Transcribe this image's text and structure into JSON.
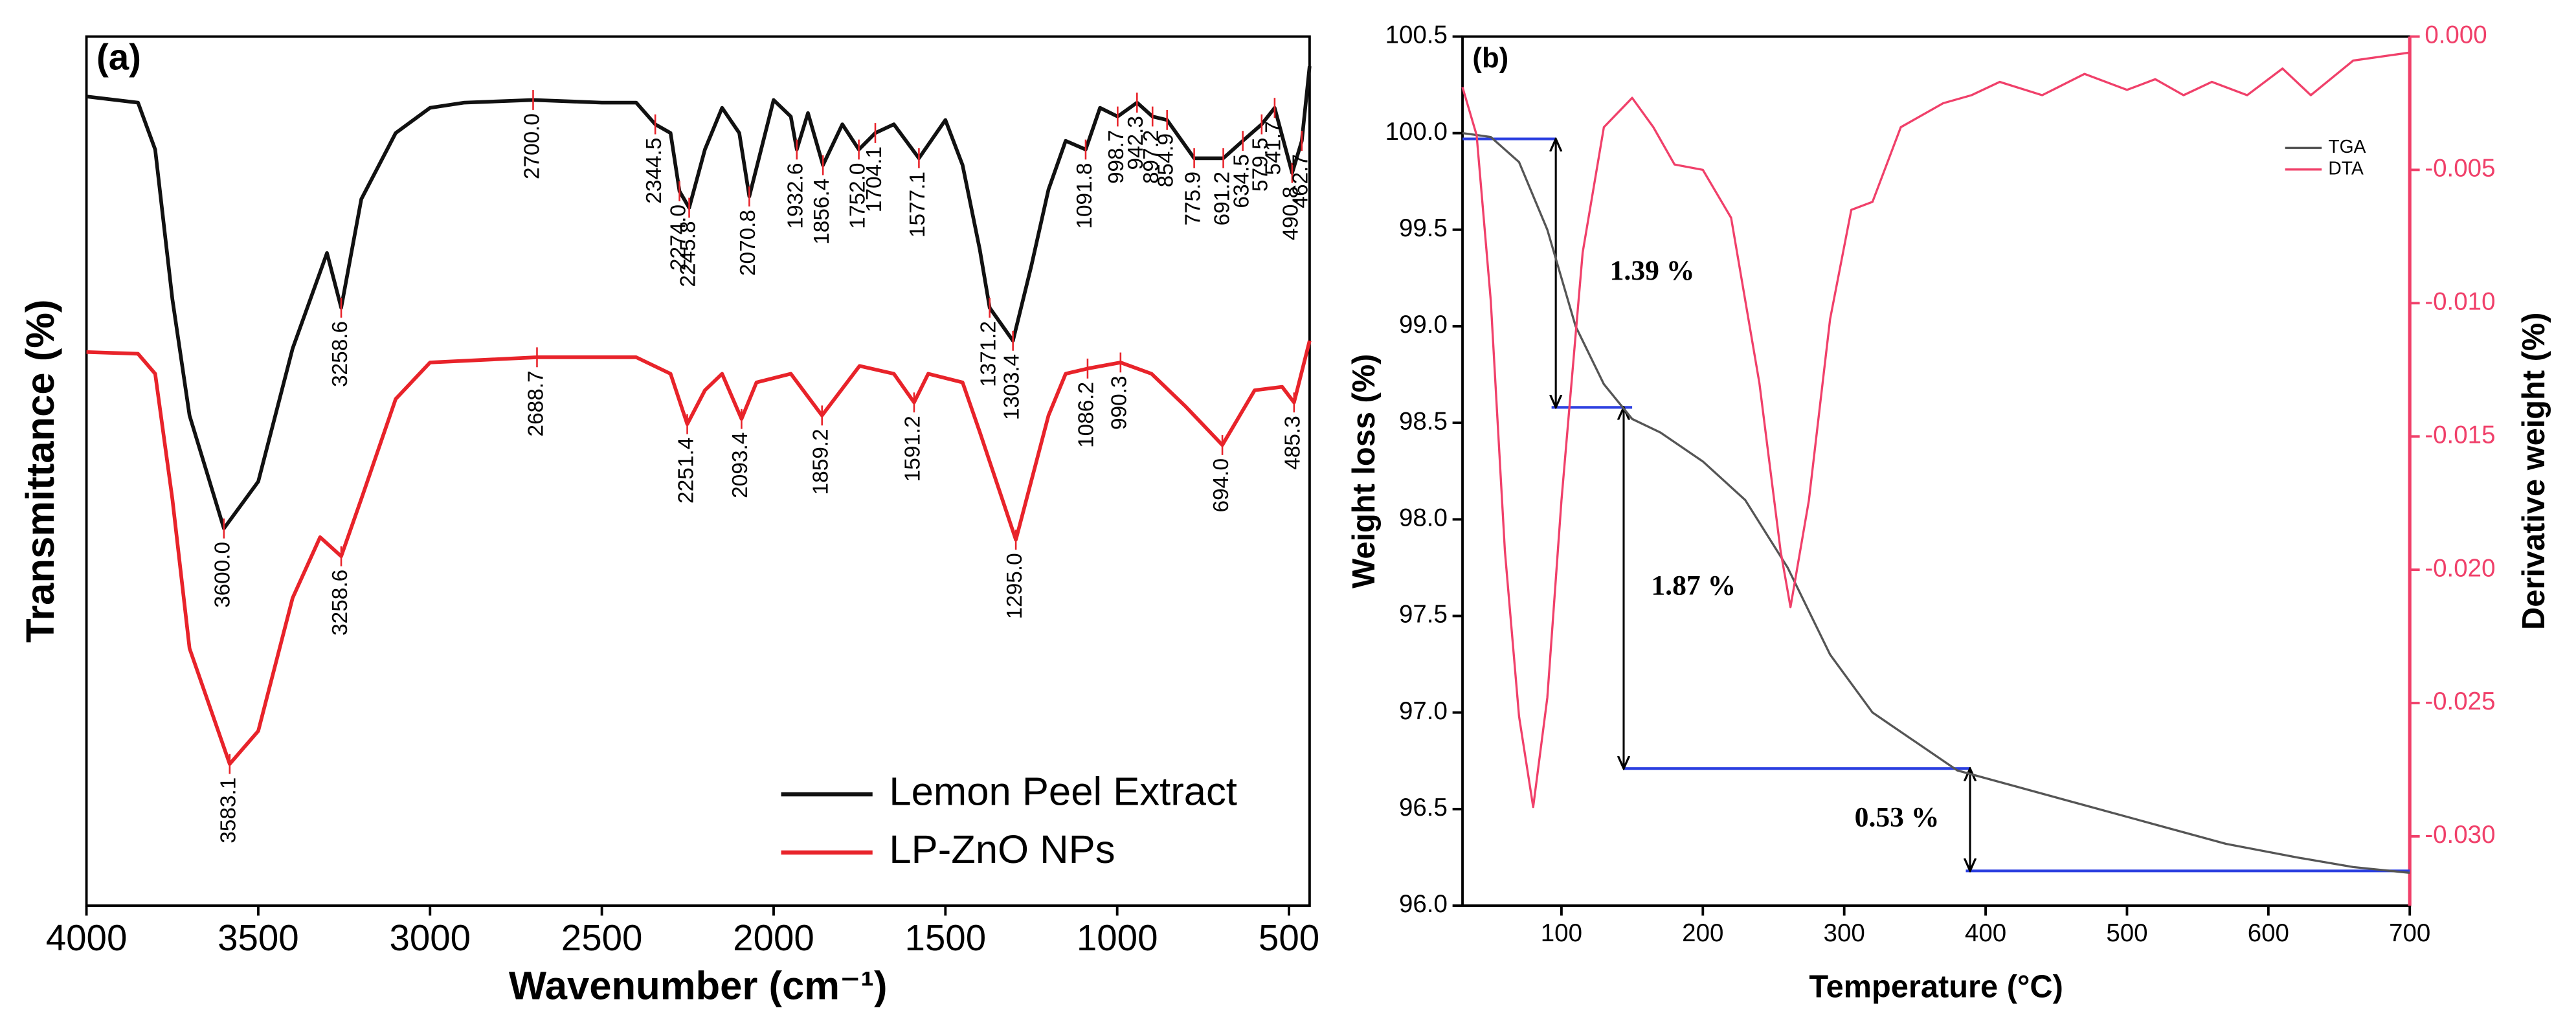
{
  "chart_data": [
    {
      "type": "line",
      "panel_label": "(a)",
      "x_label": "Wavenumber (cm⁻¹)",
      "y_label": "Transmittance (%)",
      "xlim": [
        4000,
        440
      ],
      "xticks": [
        4000,
        3500,
        3000,
        2500,
        2000,
        1500,
        1000,
        500
      ],
      "ylim": [
        0,
        100
      ],
      "legend": "lower right",
      "series": [
        {
          "name": "Lemon Peel Extract",
          "color": "#111111",
          "x": [
            4000,
            3850,
            3800,
            3750,
            3700,
            3600,
            3500,
            3400,
            3300,
            3258.6,
            3200,
            3100,
            3000,
            2900,
            2700,
            2500,
            2400,
            2344.5,
            2300,
            2274,
            2245.8,
            2200,
            2150,
            2100,
            2070.8,
            2000,
            1950,
            1932.6,
            1900,
            1856.4,
            1800,
            1752,
            1704.1,
            1650,
            1577.1,
            1500,
            1450,
            1400,
            1371.2,
            1303.4,
            1250,
            1200,
            1150,
            1091.8,
            1050,
            998.7,
            942.3,
            897.2,
            854.9,
            775.9,
            691.2,
            634.5,
            579.5,
            541.7,
            490.8,
            462.7,
            440
          ],
          "values": [
            93.1,
            92.4,
            87.0,
            69.8,
            56.4,
            43.4,
            48.8,
            64.1,
            75.1,
            68.8,
            81.3,
            88.9,
            91.8,
            92.4,
            92.7,
            92.4,
            92.4,
            89.9,
            88.9,
            82.2,
            80.3,
            87.0,
            91.8,
            88.9,
            81.6,
            92.7,
            90.8,
            87.0,
            91.2,
            85.2,
            89.9,
            87.0,
            88.9,
            89.9,
            86.0,
            90.4,
            85.2,
            75.5,
            68.8,
            65.0,
            73.6,
            82.4,
            88.0,
            87.0,
            91.8,
            90.8,
            92.4,
            90.8,
            90.4,
            86.0,
            86.0,
            88.0,
            89.9,
            91.8,
            84.3,
            88.0,
            96.6
          ],
          "peaks": [
            3600,
            3258.6,
            2700,
            2344.5,
            2274,
            2245.8,
            2070.8,
            1932.6,
            1856.4,
            1752,
            1704.1,
            1577.1,
            1371.2,
            1303.4,
            1091.8,
            998.7,
            942.3,
            897.2,
            854.9,
            775.9,
            691.2,
            634.5,
            579.5,
            541.7,
            490.8,
            462.7
          ],
          "peak_labels": [
            "3600.0",
            "3258.6",
            "2700.0",
            "2344.5",
            "2274.0",
            "2245.8",
            "2070.8",
            "1932.6",
            "1856.4",
            "1752.0",
            "1704.1",
            "1577.1",
            "1371.2",
            "1303.4",
            "1091.8",
            "998.7",
            "942.3",
            "897.2",
            "854.9",
            "775.9",
            "691.2",
            "634.5",
            "579.5",
            "541.7",
            "490.8",
            "462.7"
          ]
        },
        {
          "name": "LP-ZnO NPs",
          "color": "#e8232a",
          "x": [
            4000,
            3850,
            3800,
            3750,
            3700,
            3583.1,
            3500,
            3400,
            3320,
            3258.6,
            3200,
            3100,
            3000,
            2688.7,
            2400,
            2300,
            2251.4,
            2200,
            2150,
            2093.4,
            2050,
            1950,
            1859.2,
            1750,
            1650,
            1591.2,
            1550,
            1450,
            1400,
            1295,
            1200,
            1150,
            1086.2,
            990.3,
            900,
            800,
            694,
            600,
            520,
            485.3,
            440
          ],
          "values": [
            63.7,
            63.5,
            61.2,
            46.8,
            29.6,
            16.3,
            20.1,
            35.4,
            42.4,
            40.2,
            46.8,
            58.3,
            62.5,
            63.1,
            63.1,
            61.2,
            55.4,
            59.3,
            61.2,
            56.0,
            60.2,
            61.2,
            56.4,
            62.1,
            61.2,
            57.9,
            61.2,
            60.2,
            54.5,
            42.1,
            56.4,
            61.2,
            61.8,
            62.5,
            61.2,
            57.4,
            53.0,
            59.3,
            59.7,
            57.9,
            65.0
          ],
          "peaks": [
            3583.1,
            3258.6,
            2688.7,
            2251.4,
            2093.4,
            1859.2,
            1591.2,
            1295,
            1086.2,
            990.3,
            694,
            485.3
          ],
          "peak_labels": [
            "3583.1",
            "3258.6",
            "2688.7",
            "2251.4",
            "2093.4",
            "1859.2",
            "1591.2",
            "1295.0",
            "1086.2",
            "990.3",
            "694.0",
            "485.3"
          ]
        }
      ]
    },
    {
      "type": "line",
      "panel_label": "(b)",
      "x_label": "Temperature (°C)",
      "y_label": "Weight loss (%)",
      "y2_label": "Derivative weight (%)",
      "xlim": [
        30,
        700
      ],
      "xticks": [
        100,
        200,
        300,
        400,
        500,
        600,
        700
      ],
      "ylim": [
        96,
        100.5
      ],
      "yticks": [
        {
          "value": 96,
          "label": "96.0"
        },
        96.5,
        {
          "value": 97,
          "label": "97.0"
        },
        97.5,
        {
          "value": 98,
          "label": "98.0"
        },
        98.5,
        {
          "value": 99,
          "label": "99.0"
        },
        99.5,
        {
          "value": 100,
          "label": "100.0"
        },
        100.5
      ],
      "y2lim": [
        -0.0326,
        0
      ],
      "y2ticks": [
        {
          "value": 0,
          "label": "0.000"
        },
        -0.005,
        {
          "value": -0.01,
          "label": "-0.010"
        },
        -0.015,
        {
          "value": -0.02,
          "label": "-0.020"
        },
        -0.025,
        {
          "value": -0.03,
          "label": "-0.030"
        }
      ],
      "y2_color": "#f0406a",
      "legend": "upper right",
      "series": [
        {
          "name": "TGA",
          "color": "#555555",
          "x": [
            30,
            50,
            70,
            90,
            110,
            130,
            150,
            170,
            200,
            230,
            260,
            290,
            320,
            350,
            380,
            420,
            470,
            520,
            570,
            620,
            660,
            700
          ],
          "values": [
            100.0,
            99.98,
            99.85,
            99.5,
            99.0,
            98.7,
            98.52,
            98.45,
            98.3,
            98.1,
            97.75,
            97.3,
            97.0,
            96.85,
            96.7,
            96.62,
            96.52,
            96.42,
            96.32,
            96.25,
            96.2,
            96.17
          ]
        },
        {
          "name": "DTA",
          "color": "#f0406a",
          "axis": "y2",
          "x": [
            30,
            40,
            50,
            60,
            70,
            80,
            90,
            100,
            115,
            130,
            150,
            165,
            180,
            200,
            220,
            240,
            255,
            262,
            275,
            290,
            305,
            320,
            340,
            370,
            390,
            410,
            440,
            470,
            500,
            520,
            540,
            560,
            585,
            610,
            630,
            660,
            700
          ],
          "values": [
            -0.0019,
            -0.0037,
            -0.0099,
            -0.0193,
            -0.0255,
            -0.0289,
            -0.0248,
            -0.0174,
            -0.0081,
            -0.0034,
            -0.0023,
            -0.0034,
            -0.0048,
            -0.005,
            -0.0068,
            -0.013,
            -0.0193,
            -0.0214,
            -0.0174,
            -0.0106,
            -0.0065,
            -0.0062,
            -0.0034,
            -0.0025,
            -0.0022,
            -0.0017,
            -0.0022,
            -0.0014,
            -0.002,
            -0.0016,
            -0.0022,
            -0.0017,
            -0.0022,
            -0.0012,
            -0.0022,
            -0.0009,
            -0.0006
          ]
        }
      ],
      "guide_lines": [
        {
          "y": 99.97,
          "x": [
            30,
            96
          ]
        },
        {
          "y": 98.58,
          "x": [
            93,
            150
          ]
        },
        {
          "y": 96.71,
          "x": [
            144,
            389
          ]
        },
        {
          "y": 96.18,
          "x": [
            386,
            700
          ]
        }
      ],
      "steps": [
        {
          "label": "1.39 %",
          "x": 96,
          "from": 99.97,
          "to": 98.58
        },
        {
          "label": "1.87 %",
          "x": 144,
          "from": 98.58,
          "to": 96.71
        },
        {
          "label": "0.53 %",
          "x": 389,
          "from": 96.71,
          "to": 96.18
        }
      ]
    }
  ]
}
